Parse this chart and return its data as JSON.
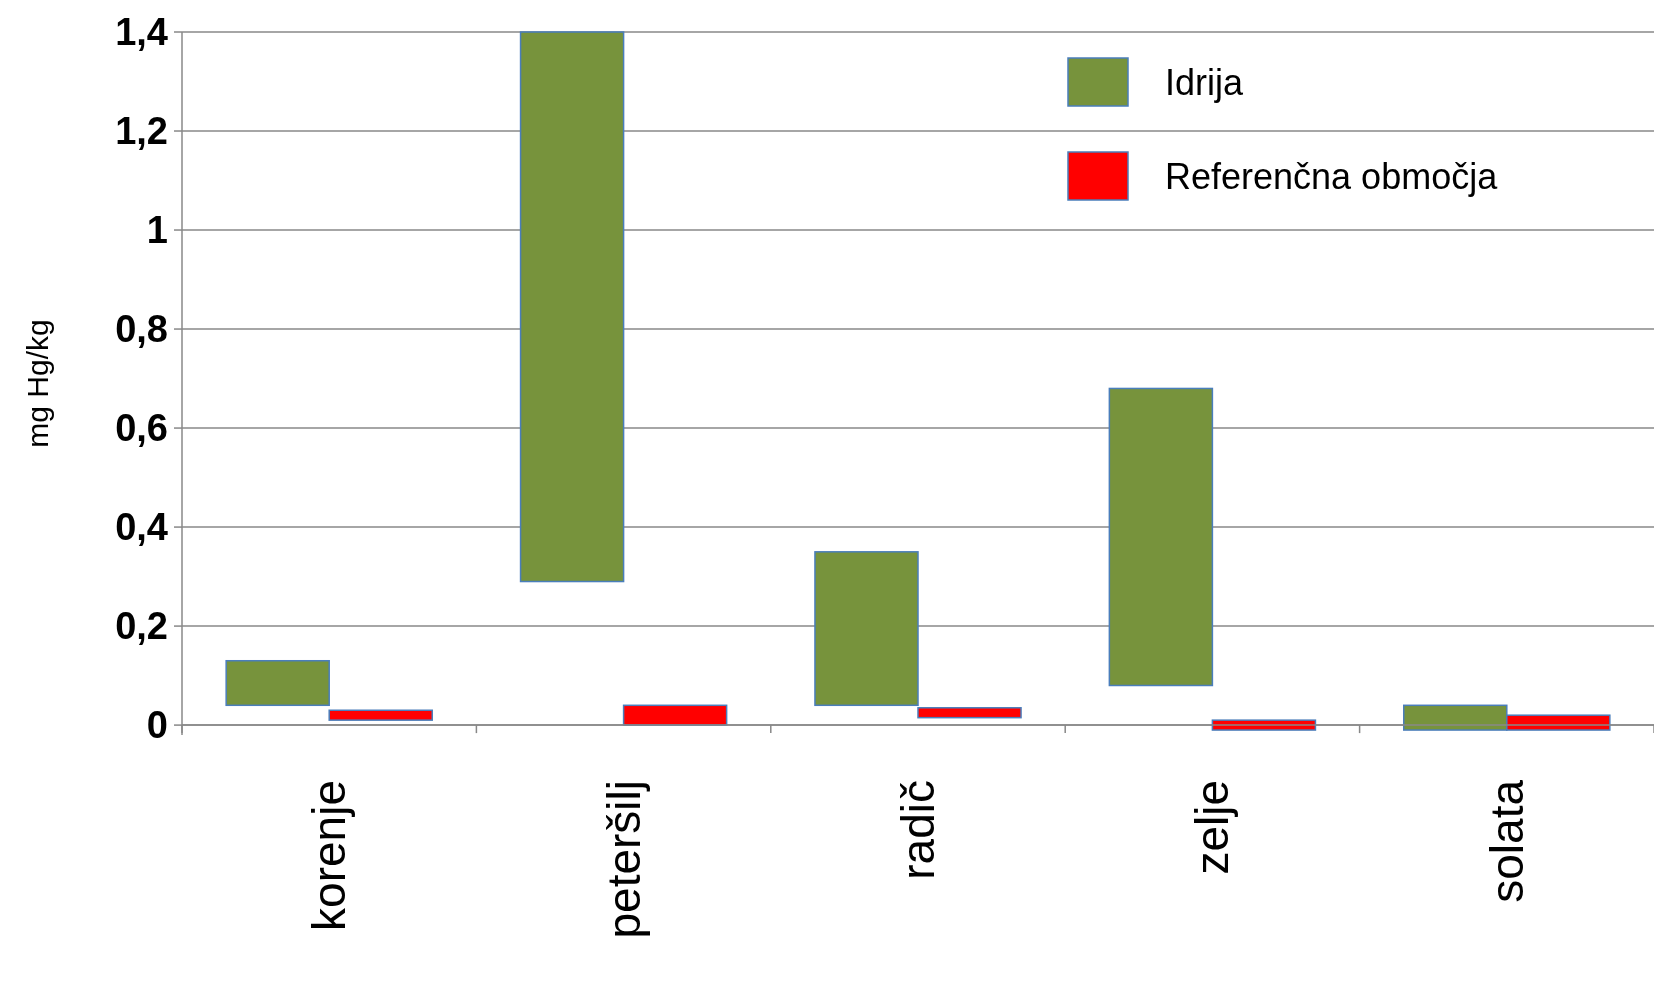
{
  "chart_data": {
    "type": "bar",
    "ylabel": "mg Hg/kg",
    "categories": [
      "korenje",
      "peteršilj",
      "radič",
      "zelje",
      "solata"
    ],
    "series": [
      {
        "name": "Idrija",
        "color": "#77933c",
        "values": [
          0.09,
          1.11,
          0.31,
          0.6,
          0.05
        ],
        "base": [
          0.04,
          0.29,
          0.04,
          0.08,
          -0.01
        ]
      },
      {
        "name": "Referenčna območja",
        "color": "#ff0000",
        "values": [
          0.02,
          0.04,
          0.02,
          0.02,
          0.03
        ],
        "base": [
          0.01,
          0,
          0.015,
          -0.01,
          -0.01
        ]
      }
    ],
    "ylim": [
      -0.02,
      1.4
    ],
    "yticks": [
      {
        "value": 0,
        "label": "0"
      },
      {
        "value": 0.2,
        "label": "0,2"
      },
      {
        "value": 0.4,
        "label": "0,4"
      },
      {
        "value": 0.6,
        "label": "0,6"
      },
      {
        "value": 0.8,
        "label": "0,8"
      },
      {
        "value": 1,
        "label": "1"
      },
      {
        "value": 1.2,
        "label": "1,2"
      },
      {
        "value": 1.4,
        "label": "1,4"
      }
    ],
    "grid": "y",
    "legend": "top right"
  }
}
